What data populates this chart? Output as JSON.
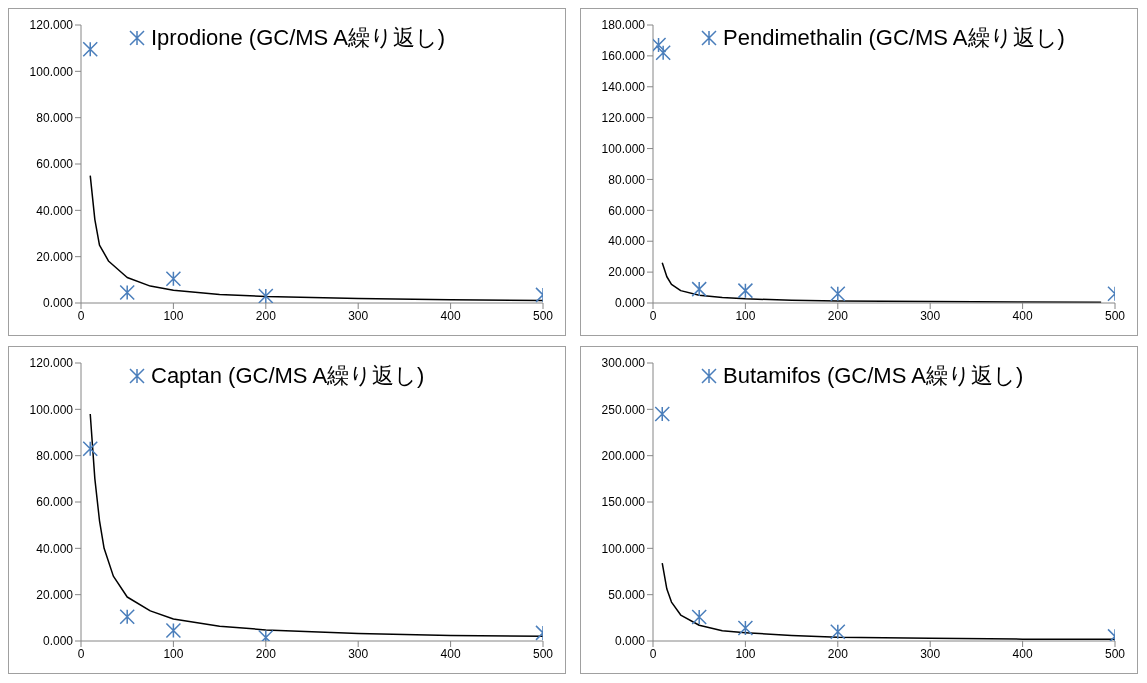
{
  "chart_data": [
    {
      "type": "scatter",
      "legend": "top",
      "xlim": [
        0,
        500
      ],
      "xticks": [
        0,
        100,
        200,
        300,
        400,
        500
      ],
      "ylim": [
        0,
        120
      ],
      "yticks": [
        {
          "value": 0,
          "label": "0.000"
        },
        {
          "value": 20,
          "label": "20.000"
        },
        {
          "value": 40,
          "label": "40.000"
        },
        {
          "value": 60,
          "label": "60.000"
        },
        {
          "value": 80,
          "label": "80.000"
        },
        {
          "value": 100,
          "label": "100.000"
        },
        {
          "value": 120,
          "label": "120.000"
        }
      ],
      "series": [
        {
          "name": "Iprodione (GC/MS A繰り返し)",
          "color": "#4a7ebb",
          "marker": "cross",
          "x": [
            10,
            50,
            100,
            200,
            500
          ],
          "values": [
            109.5,
            4.5,
            10.5,
            3,
            3.5
          ]
        },
        {
          "type": "line",
          "color": "#000000",
          "marker": "none",
          "line_style": "solid",
          "x": [
            10,
            15,
            20,
            30,
            50,
            75,
            100,
            150,
            200,
            300,
            400,
            500
          ],
          "values": [
            55,
            36,
            25,
            18,
            11,
            7.3,
            5.5,
            3.7,
            2.8,
            1.9,
            1.4,
            1.1
          ]
        }
      ]
    },
    {
      "type": "scatter",
      "legend": "top",
      "xlim": [
        0,
        500
      ],
      "xticks": [
        0,
        100,
        200,
        300,
        400,
        500
      ],
      "ylim": [
        0,
        180
      ],
      "yticks": [
        {
          "value": 0,
          "label": "0.000"
        },
        {
          "value": 20,
          "label": "20.000"
        },
        {
          "value": 40,
          "label": "40.000"
        },
        {
          "value": 60,
          "label": "60.000"
        },
        {
          "value": 80,
          "label": "80.000"
        },
        {
          "value": 100,
          "label": "100.000"
        },
        {
          "value": 120,
          "label": "120.000"
        },
        {
          "value": 140,
          "label": "140.000"
        },
        {
          "value": 160,
          "label": "160.000"
        },
        {
          "value": 180,
          "label": "180.000"
        }
      ],
      "series": [
        {
          "name": "Pendimethalin (GC/MS A繰り返し)",
          "color": "#4a7ebb",
          "marker": "cross",
          "x": [
            6,
            11,
            50,
            100,
            200,
            500
          ],
          "values": [
            167,
            162,
            9,
            8,
            6,
            6
          ]
        },
        {
          "type": "line",
          "color": "#000000",
          "marker": "none",
          "line_style": "solid",
          "x": [
            10,
            15,
            20,
            30,
            50,
            75,
            100,
            150,
            200,
            300,
            400,
            485
          ],
          "values": [
            26,
            17,
            12,
            8,
            5,
            3.5,
            2.7,
            1.8,
            1.3,
            0.9,
            0.7,
            0.5
          ]
        }
      ]
    },
    {
      "type": "scatter",
      "legend": "top",
      "xlim": [
        0,
        500
      ],
      "xticks": [
        0,
        100,
        200,
        300,
        400,
        500
      ],
      "ylim": [
        0,
        120
      ],
      "yticks": [
        {
          "value": 0,
          "label": "0.000"
        },
        {
          "value": 20,
          "label": "20.000"
        },
        {
          "value": 40,
          "label": "40.000"
        },
        {
          "value": 60,
          "label": "60.000"
        },
        {
          "value": 80,
          "label": "80.000"
        },
        {
          "value": 100,
          "label": "100.000"
        },
        {
          "value": 120,
          "label": "120.000"
        }
      ],
      "series": [
        {
          "name": "Captan (GC/MS A繰り返し)",
          "color": "#4a7ebb",
          "marker": "cross",
          "x": [
            10,
            50,
            100,
            200,
            500
          ],
          "values": [
            83,
            10.5,
            4.5,
            1.5,
            3.5
          ]
        },
        {
          "type": "line",
          "color": "#000000",
          "marker": "none",
          "line_style": "solid",
          "x": [
            10,
            15,
            20,
            25,
            35,
            50,
            75,
            100,
            150,
            200,
            300,
            400,
            500
          ],
          "values": [
            98,
            70,
            52,
            40,
            28,
            19,
            13,
            9.5,
            6.4,
            4.8,
            3.2,
            2.4,
            2
          ]
        }
      ]
    },
    {
      "type": "scatter",
      "legend": "top",
      "xlim": [
        0,
        500
      ],
      "xticks": [
        0,
        100,
        200,
        300,
        400,
        500
      ],
      "ylim": [
        0,
        300
      ],
      "yticks": [
        {
          "value": 0,
          "label": "0.000"
        },
        {
          "value": 50,
          "label": "50.000"
        },
        {
          "value": 100,
          "label": "100.000"
        },
        {
          "value": 150,
          "label": "150.000"
        },
        {
          "value": 200,
          "label": "200.000"
        },
        {
          "value": 250,
          "label": "250.000"
        },
        {
          "value": 300,
          "label": "300.000"
        }
      ],
      "series": [
        {
          "name": "Butamifos (GC/MS A繰り返し)",
          "color": "#4a7ebb",
          "marker": "cross",
          "x": [
            10,
            50,
            100,
            200,
            500
          ],
          "values": [
            245,
            26,
            14,
            10,
            5
          ]
        },
        {
          "type": "line",
          "color": "#000000",
          "marker": "none",
          "line_style": "solid",
          "x": [
            10,
            15,
            20,
            30,
            50,
            75,
            100,
            150,
            200,
            300,
            400,
            500
          ],
          "values": [
            84,
            56,
            42,
            28,
            17,
            11,
            9,
            6,
            4,
            3,
            2,
            2
          ]
        }
      ]
    }
  ]
}
